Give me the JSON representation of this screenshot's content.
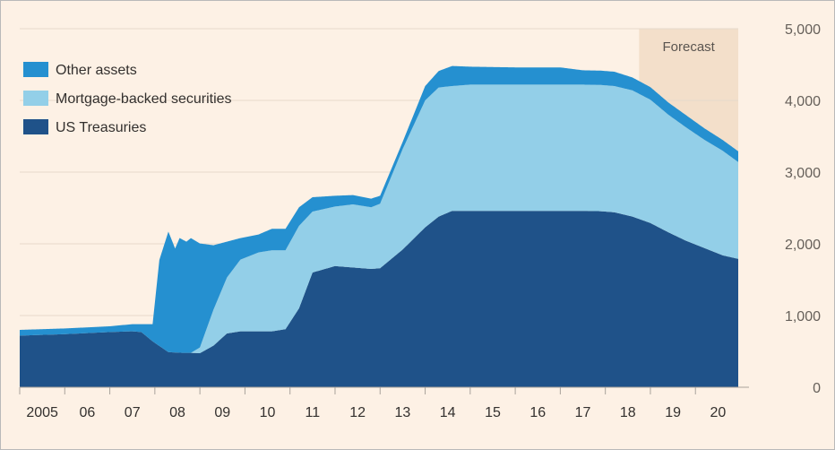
{
  "chart_data": {
    "type": "area",
    "stacked": true,
    "legend_position": "top-left",
    "grid": "horizontal",
    "y_axis_side": "right",
    "ylim": [
      0,
      5000
    ],
    "y_ticks": [
      0,
      1000,
      2000,
      3000,
      4000,
      5000
    ],
    "y_tick_labels": [
      "0",
      "1,000",
      "2,000",
      "3,000",
      "4,000",
      "5,000"
    ],
    "xlim": [
      2005.0,
      2020.95
    ],
    "x_tick_labels": [
      "2005",
      "06",
      "07",
      "08",
      "09",
      "10",
      "11",
      "12",
      "13",
      "14",
      "15",
      "16",
      "17",
      "18",
      "19",
      "20"
    ],
    "annotation": {
      "label": "Forecast",
      "x_start": 2018.75,
      "x_end": 2020.95
    },
    "series": [
      {
        "name": "US Treasuries",
        "color": "#1f5289",
        "x": [
          2005.0,
          2006.0,
          2007.0,
          2007.5,
          2007.7,
          2007.95,
          2008.3,
          2008.6,
          2008.8,
          2009.0,
          2009.3,
          2009.6,
          2009.9,
          2010.3,
          2010.6,
          2010.9,
          2011.2,
          2011.5,
          2012.0,
          2012.4,
          2012.8,
          2013.0,
          2013.5,
          2014.0,
          2014.3,
          2014.6,
          2015.0,
          2016.0,
          2017.0,
          2017.5,
          2017.9,
          2018.2,
          2018.6,
          2019.0,
          2019.4,
          2019.8,
          2020.2,
          2020.6,
          2020.95
        ],
        "values": [
          720,
          740,
          770,
          780,
          770,
          640,
          490,
          480,
          480,
          475,
          580,
          750,
          780,
          780,
          780,
          810,
          1100,
          1600,
          1690,
          1670,
          1650,
          1660,
          1920,
          2230,
          2380,
          2460,
          2460,
          2460,
          2460,
          2460,
          2455,
          2440,
          2380,
          2290,
          2160,
          2040,
          1940,
          1840,
          1790
        ]
      },
      {
        "name": "Mortgage-backed securities",
        "color": "#93cfe8",
        "x": [
          2005.0,
          2008.8,
          2009.0,
          2009.3,
          2009.6,
          2009.9,
          2010.3,
          2010.6,
          2010.9,
          2011.2,
          2011.5,
          2012.0,
          2012.4,
          2012.8,
          2013.0,
          2013.5,
          2014.0,
          2014.3,
          2014.6,
          2015.0,
          2016.0,
          2017.0,
          2017.5,
          2017.9,
          2018.2,
          2018.6,
          2019.0,
          2019.4,
          2019.8,
          2020.2,
          2020.6,
          2020.95
        ],
        "values": [
          0,
          0,
          80,
          500,
          780,
          1000,
          1100,
          1130,
          1100,
          1150,
          850,
          830,
          880,
          860,
          900,
          1400,
          1770,
          1800,
          1740,
          1760,
          1760,
          1760,
          1760,
          1760,
          1760,
          1760,
          1720,
          1640,
          1580,
          1510,
          1460,
          1350
        ]
      },
      {
        "name": "Other assets",
        "color": "#2590d0",
        "x": [
          2005.0,
          2006.0,
          2007.0,
          2007.5,
          2007.7,
          2007.95,
          2008.1,
          2008.3,
          2008.45,
          2008.55,
          2008.7,
          2008.8,
          2009.0,
          2009.3,
          2009.6,
          2009.9,
          2010.3,
          2010.6,
          2010.9,
          2011.2,
          2011.5,
          2012.0,
          2012.4,
          2012.8,
          2013.0,
          2013.5,
          2014.0,
          2014.3,
          2014.6,
          2015.0,
          2016.0,
          2017.0,
          2017.5,
          2017.9,
          2018.2,
          2018.6,
          2019.0,
          2019.4,
          2019.8,
          2020.2,
          2020.6,
          2020.95
        ],
        "values": [
          80,
          80,
          80,
          100,
          110,
          240,
          1200,
          1680,
          1450,
          1600,
          1550,
          1600,
          1450,
          900,
          500,
          300,
          250,
          300,
          300,
          260,
          200,
          150,
          130,
          120,
          110,
          100,
          200,
          230,
          280,
          250,
          240,
          240,
          200,
          200,
          200,
          180,
          175,
          170,
          170,
          160,
          150,
          150
        ]
      }
    ]
  }
}
